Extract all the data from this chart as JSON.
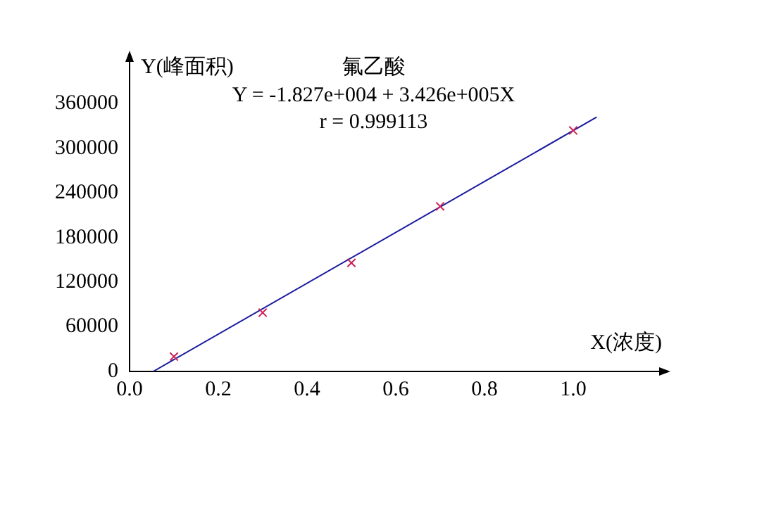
{
  "chart_data": {
    "type": "scatter",
    "title": "氟乙酸",
    "xlabel": "X(浓度)",
    "ylabel": "Y(峰面积)",
    "annotations": [
      "Y = -1.827e+004 + 3.426e+005X",
      "r = 0.999113"
    ],
    "series": [
      {
        "type": "scatter",
        "color": "#cc2255",
        "marker": "cross",
        "x": [
          0.1,
          0.3,
          0.5,
          0.7,
          1.0
        ],
        "values": [
          20000,
          79000,
          146000,
          222000,
          324000
        ]
      },
      {
        "type": "line",
        "color": "#1a1aa0",
        "marker": "none",
        "x": [
          0.0533,
          1.053
        ],
        "values": [
          0,
          342000
        ]
      }
    ],
    "xlim": [
      0,
      1.2
    ],
    "xticks": [
      {
        "value": 0,
        "label": "0.0"
      },
      {
        "value": 0.2,
        "label": "0.2"
      },
      {
        "value": 0.4,
        "label": "0.4"
      },
      {
        "value": 0.6,
        "label": "0.6"
      },
      {
        "value": 0.8,
        "label": "0.8"
      },
      {
        "value": 1,
        "label": "1.0"
      }
    ],
    "ylim": [
      0,
      420000
    ],
    "yticks": [
      0,
      60000,
      120000,
      180000,
      240000,
      300000,
      360000
    ],
    "grid": false,
    "legend": false
  }
}
